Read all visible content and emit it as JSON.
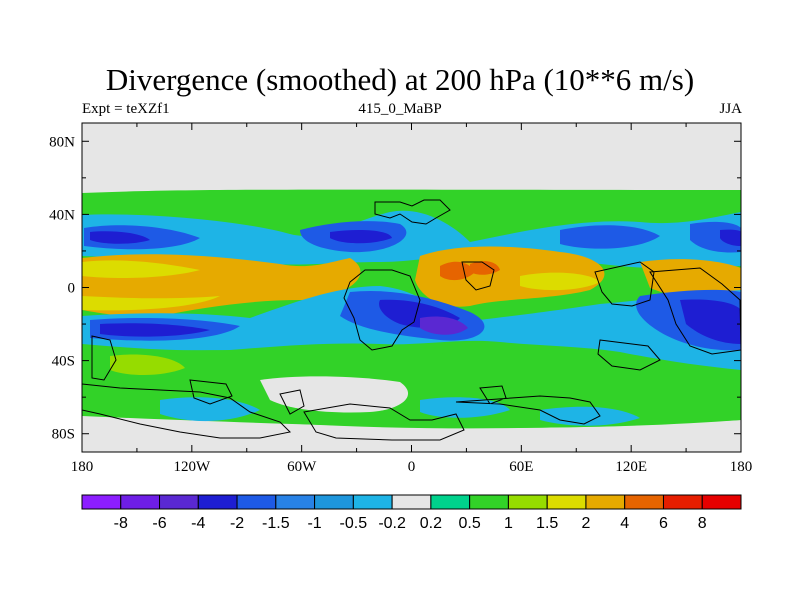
{
  "title": "Divergence (smoothed) at 200 hPa (10**6 m/s)",
  "subtitle_left": "Expt = teXZf1",
  "subtitle_center": "415_0_MaBP",
  "subtitle_right": "JJA",
  "chart_data": {
    "type": "heatmap",
    "title": "Divergence (smoothed) at 200 hPa (10**6 m/s)",
    "projection": "cylindrical-equidistant",
    "xlim": [
      -180,
      180
    ],
    "ylim": [
      -90,
      90
    ],
    "x_ticks": [
      {
        "value": -180,
        "label": "180"
      },
      {
        "value": -120,
        "label": "120W"
      },
      {
        "value": -60,
        "label": "60W"
      },
      {
        "value": 0,
        "label": "0"
      },
      {
        "value": 60,
        "label": "60E"
      },
      {
        "value": 120,
        "label": "120E"
      },
      {
        "value": 180,
        "label": "180"
      }
    ],
    "y_ticks": [
      {
        "value": 80,
        "label": "80N"
      },
      {
        "value": 40,
        "label": "40N"
      },
      {
        "value": 0,
        "label": "0"
      },
      {
        "value": -40,
        "label": "40S"
      },
      {
        "value": -80,
        "label": "80S"
      }
    ],
    "colorbar": {
      "colors": [
        "#8c1eff",
        "#6e1ee6",
        "#5a28d2",
        "#1e1ed2",
        "#1e5ae6",
        "#2882e6",
        "#1e96dc",
        "#1eb4e6",
        "#e6e6e6",
        "#00d28c",
        "#32d228",
        "#96dc00",
        "#dcdc00",
        "#e6aa00",
        "#e66400",
        "#e61e00",
        "#e60000"
      ],
      "labels": [
        "-8",
        "-6",
        "-4",
        "-2",
        "-1.5",
        "-1",
        "-0.5",
        "-0.2",
        "0.2",
        "0.5",
        "1",
        "1.5",
        "2",
        "4",
        "6",
        "8"
      ]
    },
    "features": [
      {
        "lon0": -180,
        "lon1": 180,
        "lat0": 54,
        "lat1": -82,
        "value": 0.6,
        "note": "background band"
      },
      {
        "lon0": -175,
        "lon1": -115,
        "lat0": 40,
        "lat1": 26,
        "value": -1.2
      },
      {
        "lon0": -75,
        "lon1": -45,
        "lat0": 40,
        "lat1": 30,
        "value": -0.6
      },
      {
        "lon0": -40,
        "lon1": 0,
        "lat0": 46,
        "lat1": 30,
        "value": -1.8
      },
      {
        "lon0": 70,
        "lon1": 120,
        "lat0": 44,
        "lat1": 28,
        "value": -1.5
      },
      {
        "lon0": 155,
        "lon1": 180,
        "lat0": 36,
        "lat1": 24,
        "value": -2.5
      },
      {
        "lon0": -180,
        "lon1": -90,
        "lat0": 18,
        "lat1": -4,
        "value": 1.8
      },
      {
        "lon0": -75,
        "lon1": -30,
        "lat0": 14,
        "lat1": 0,
        "value": 1.5
      },
      {
        "lon0": 5,
        "lon1": 100,
        "lat0": 24,
        "lat1": -10,
        "value": 2.6
      },
      {
        "lon0": 140,
        "lon1": 180,
        "lat0": 14,
        "lat1": -8,
        "value": 2.2
      },
      {
        "lon0": -175,
        "lon1": -110,
        "lat0": -16,
        "lat1": -30,
        "value": -3.0
      },
      {
        "lon0": -20,
        "lon1": 50,
        "lat0": -4,
        "lat1": -34,
        "value": -4.5
      },
      {
        "lon0": 120,
        "lon1": 180,
        "lat0": -6,
        "lat1": -32,
        "value": -3.2
      },
      {
        "lon0": -165,
        "lon1": -120,
        "lat0": -38,
        "lat1": -56,
        "value": 1.0
      },
      {
        "lon0": -100,
        "lon1": -60,
        "lat0": -44,
        "lat1": -56,
        "value": -0.5
      },
      {
        "lon0": -70,
        "lon1": -25,
        "lat0": -50,
        "lat1": -74,
        "value": 0.1
      },
      {
        "lon0": 80,
        "lon1": 140,
        "lat0": -64,
        "lat1": -76,
        "value": -0.8
      }
    ]
  }
}
